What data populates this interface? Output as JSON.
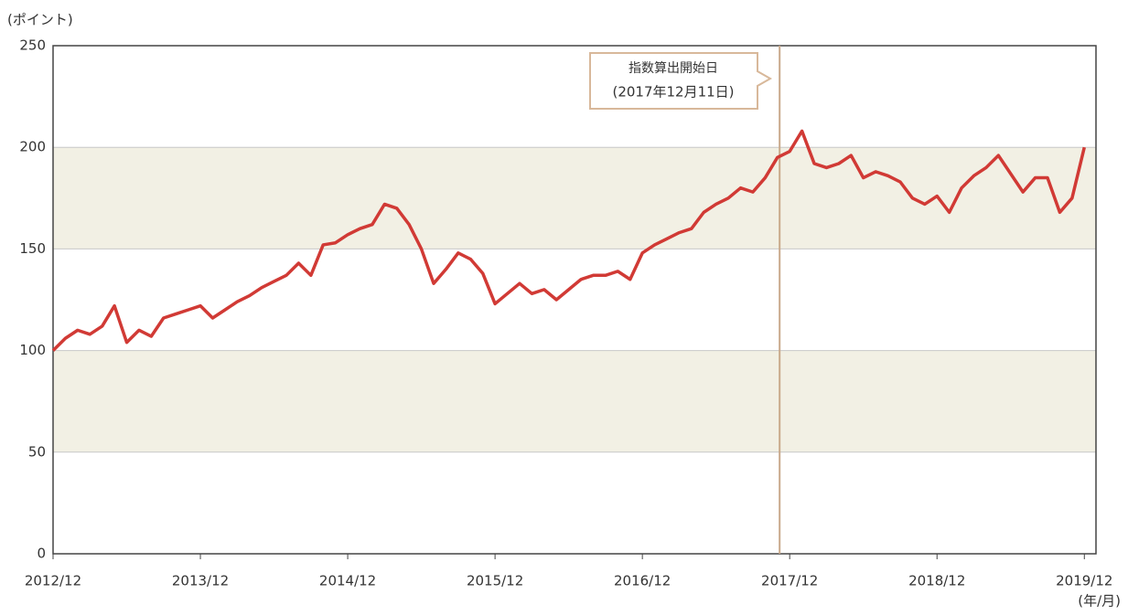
{
  "chart_data": {
    "type": "line",
    "y_unit_label": "(ポイント)",
    "x_unit_label": "(年/月)",
    "annotation": {
      "title": "指数算出開始日",
      "date": "(2017年12月11日)",
      "x": "2017/12"
    },
    "x": [
      "2012/12",
      "2013/01",
      "2013/02",
      "2013/03",
      "2013/04",
      "2013/05",
      "2013/06",
      "2013/07",
      "2013/08",
      "2013/09",
      "2013/10",
      "2013/11",
      "2013/12",
      "2014/01",
      "2014/02",
      "2014/03",
      "2014/04",
      "2014/05",
      "2014/06",
      "2014/07",
      "2014/08",
      "2014/09",
      "2014/10",
      "2014/11",
      "2014/12",
      "2015/01",
      "2015/02",
      "2015/03",
      "2015/04",
      "2015/05",
      "2015/06",
      "2015/07",
      "2015/08",
      "2015/09",
      "2015/10",
      "2015/11",
      "2015/12",
      "2016/01",
      "2016/02",
      "2016/03",
      "2016/04",
      "2016/05",
      "2016/06",
      "2016/07",
      "2016/08",
      "2016/09",
      "2016/10",
      "2016/11",
      "2016/12",
      "2017/01",
      "2017/02",
      "2017/03",
      "2017/04",
      "2017/05",
      "2017/06",
      "2017/07",
      "2017/08",
      "2017/09",
      "2017/10",
      "2017/11",
      "2017/12",
      "2018/01",
      "2018/02",
      "2018/03",
      "2018/04",
      "2018/05",
      "2018/06",
      "2018/07",
      "2018/08",
      "2018/09",
      "2018/10",
      "2018/11",
      "2018/12",
      "2019/01",
      "2019/02",
      "2019/03",
      "2019/04",
      "2019/05",
      "2019/06",
      "2019/07",
      "2019/08",
      "2019/09",
      "2019/10",
      "2019/11",
      "2019/12"
    ],
    "values": [
      100,
      106,
      110,
      108,
      112,
      122,
      104,
      110,
      107,
      116,
      118,
      120,
      122,
      116,
      120,
      124,
      127,
      131,
      134,
      137,
      143,
      137,
      152,
      153,
      157,
      160,
      162,
      172,
      170,
      162,
      150,
      133,
      140,
      148,
      145,
      138,
      123,
      128,
      133,
      128,
      130,
      125,
      130,
      135,
      137,
      137,
      139,
      135,
      148,
      152,
      155,
      158,
      160,
      168,
      172,
      175,
      180,
      178,
      185,
      195,
      198,
      208,
      192,
      190,
      192,
      196,
      185,
      188,
      186,
      183,
      175,
      172,
      176,
      168,
      180,
      186,
      190,
      196,
      187,
      178,
      185,
      185,
      168,
      175,
      200
    ],
    "color": "#d13a35",
    "xticks": [
      "2012/12",
      "2013/12",
      "2014/12",
      "2015/12",
      "2016/12",
      "2017/12",
      "2018/12",
      "2019/12"
    ],
    "ylim": [
      0,
      250
    ],
    "yticks": [
      0,
      50,
      100,
      150,
      200,
      250
    ],
    "bands": [
      [
        50,
        100
      ],
      [
        150,
        200
      ]
    ],
    "band_color": "#f2f0e4",
    "grid": true
  }
}
